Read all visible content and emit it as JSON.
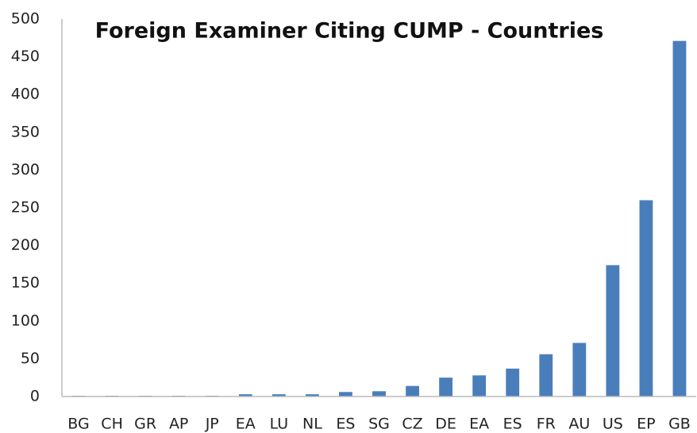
{
  "chart_data": {
    "type": "bar",
    "title": "Foreign Examiner Citing CUMP - Countries",
    "categories": [
      "BG",
      "CH",
      "GR",
      "AP",
      "JP",
      "EA",
      "LU",
      "NL",
      "ES",
      "SG",
      "CZ",
      "DE",
      "EA",
      "ES",
      "FR",
      "AU",
      "US",
      "EP",
      "GB"
    ],
    "values": [
      1,
      1,
      1,
      1,
      1,
      3,
      3,
      3,
      6,
      7,
      14,
      25,
      28,
      37,
      56,
      71,
      174,
      260,
      471
    ],
    "color": "#4a7ebb",
    "ylim": [
      0,
      500
    ],
    "yticks": [
      0,
      50,
      100,
      150,
      200,
      250,
      300,
      350,
      400,
      450,
      500
    ],
    "grid": false
  }
}
